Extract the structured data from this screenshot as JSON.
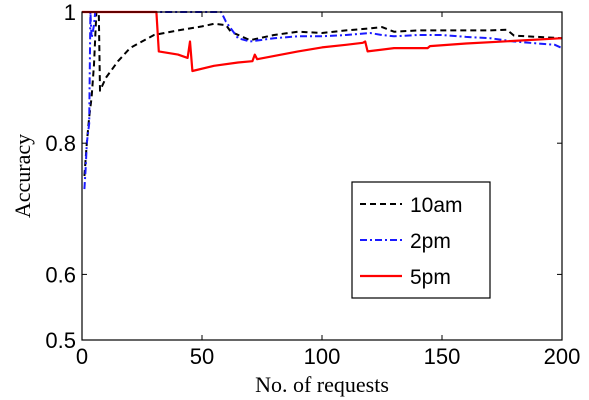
{
  "chart_data": {
    "type": "line",
    "title": "",
    "xlabel": "No. of requests",
    "ylabel": "Accuracy",
    "xlim": [
      0,
      200
    ],
    "ylim": [
      0.5,
      1.0
    ],
    "x_ticks": [
      0,
      50,
      100,
      150,
      200
    ],
    "y_ticks": [
      0.5,
      0.6,
      0.8,
      1
    ],
    "grid": false,
    "legend_position": "center-right",
    "series": [
      {
        "name": "10am",
        "color": "#000000",
        "style": "dashed",
        "points": [
          [
            1,
            0.75
          ],
          [
            2,
            0.8
          ],
          [
            3,
            0.84
          ],
          [
            4,
            0.87
          ],
          [
            5,
            0.92
          ],
          [
            6,
            1.0
          ],
          [
            7,
            1.0
          ],
          [
            7.5,
            0.88
          ],
          [
            10,
            0.9
          ],
          [
            15,
            0.925
          ],
          [
            20,
            0.945
          ],
          [
            25,
            0.955
          ],
          [
            30,
            0.965
          ],
          [
            40,
            0.972
          ],
          [
            50,
            0.978
          ],
          [
            55,
            0.982
          ],
          [
            60,
            0.98
          ],
          [
            62,
            0.97
          ],
          [
            70,
            0.957
          ],
          [
            80,
            0.965
          ],
          [
            90,
            0.97
          ],
          [
            100,
            0.968
          ],
          [
            110,
            0.972
          ],
          [
            120,
            0.975
          ],
          [
            125,
            0.977
          ],
          [
            130,
            0.97
          ],
          [
            140,
            0.972
          ],
          [
            150,
            0.972
          ],
          [
            160,
            0.972
          ],
          [
            170,
            0.972
          ],
          [
            177,
            0.973
          ],
          [
            180,
            0.964
          ],
          [
            190,
            0.962
          ],
          [
            200,
            0.96
          ]
        ]
      },
      {
        "name": "2pm",
        "color": "#1a1aff",
        "style": "dashdot",
        "points": [
          [
            1,
            0.73
          ],
          [
            1.5,
            0.76
          ],
          [
            2,
            0.8
          ],
          [
            3,
            0.83
          ],
          [
            3.5,
            1.0
          ],
          [
            4,
            0.96
          ],
          [
            5,
            0.98
          ],
          [
            5.5,
            1.0
          ],
          [
            6,
            1.0
          ],
          [
            30,
            1.0
          ],
          [
            32,
            1.0
          ],
          [
            58,
            1.0
          ],
          [
            60,
            0.985
          ],
          [
            62,
            0.975
          ],
          [
            65,
            0.96
          ],
          [
            70,
            0.955
          ],
          [
            80,
            0.96
          ],
          [
            90,
            0.963
          ],
          [
            100,
            0.963
          ],
          [
            110,
            0.965
          ],
          [
            120,
            0.968
          ],
          [
            125,
            0.965
          ],
          [
            130,
            0.963
          ],
          [
            140,
            0.965
          ],
          [
            150,
            0.965
          ],
          [
            160,
            0.962
          ],
          [
            170,
            0.96
          ],
          [
            180,
            0.955
          ],
          [
            190,
            0.952
          ],
          [
            197,
            0.95
          ],
          [
            200,
            0.945
          ]
        ]
      },
      {
        "name": "5pm",
        "color": "#ff0000",
        "style": "solid",
        "points": [
          [
            0,
            1.0
          ],
          [
            31,
            1.0
          ],
          [
            32,
            0.94
          ],
          [
            40,
            0.935
          ],
          [
            44,
            0.93
          ],
          [
            45,
            0.955
          ],
          [
            46,
            0.91
          ],
          [
            55,
            0.918
          ],
          [
            65,
            0.923
          ],
          [
            71,
            0.925
          ],
          [
            72,
            0.935
          ],
          [
            73,
            0.928
          ],
          [
            90,
            0.94
          ],
          [
            100,
            0.946
          ],
          [
            110,
            0.95
          ],
          [
            117,
            0.953
          ],
          [
            118,
            0.955
          ],
          [
            119,
            0.94
          ],
          [
            130,
            0.945
          ],
          [
            144,
            0.945
          ],
          [
            145,
            0.948
          ],
          [
            160,
            0.952
          ],
          [
            180,
            0.956
          ],
          [
            200,
            0.96
          ]
        ]
      }
    ]
  }
}
